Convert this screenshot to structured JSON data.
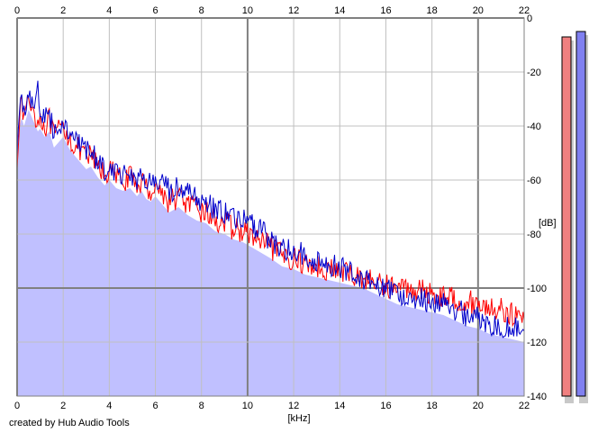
{
  "credit": "created by Hub Audio Tools",
  "colors": {
    "background": "#ffffff",
    "plot_background": "#ffffff",
    "fill": "#c0c0ff",
    "grid_light": "#c0c0c0",
    "grid_dark": "#808080",
    "left_channel": "#ff0000",
    "right_channel": "#0000cc",
    "meter_left": "#f08080",
    "meter_right": "#8080f0",
    "meter_shadow": "#c8c8c8"
  },
  "chart_data": {
    "type": "line",
    "title": "",
    "xlabel": "[kHz]",
    "ylabel": "[dB]",
    "xlim": [
      0,
      22
    ],
    "ylim": [
      -140,
      0
    ],
    "x_ticks": [
      "0",
      "2",
      "4",
      "6",
      "8",
      "10",
      "12",
      "14",
      "16",
      "18",
      "20",
      "22"
    ],
    "y_ticks": [
      "0",
      "-20",
      "-40",
      "-60",
      "-80",
      "-100",
      "-120",
      "-140"
    ],
    "grid": true,
    "legend": "none",
    "x": [
      0,
      0.1,
      0.2,
      0.3,
      0.5,
      0.7,
      0.9,
      1.0,
      1.2,
      1.4,
      1.6,
      1.8,
      2.0,
      2.3,
      2.6,
      3.0,
      3.2,
      3.5,
      3.8,
      4.0,
      4.3,
      4.6,
      4.9,
      5.2,
      5.4,
      5.6,
      5.8,
      6.0,
      6.3,
      6.6,
      7.0,
      7.4,
      7.8,
      8.2,
      8.6,
      9.0,
      9.4,
      9.8,
      10.2,
      10.6,
      11.0,
      11.5,
      12.0,
      12.5,
      13.0,
      13.5,
      14.0,
      14.5,
      15.0,
      15.5,
      16.0,
      16.5,
      17.0,
      17.5,
      18.0,
      18.5,
      19.0,
      19.5,
      20.0,
      20.5,
      21.0,
      21.5,
      22.0
    ],
    "series": [
      {
        "color": "#ff0000",
        "values": [
          -52,
          -36,
          -33,
          -36,
          -30,
          -34,
          -38,
          -37,
          -40,
          -38,
          -44,
          -42,
          -40,
          -45,
          -48,
          -52,
          -51,
          -55,
          -58,
          -56,
          -59,
          -60,
          -59,
          -62,
          -60,
          -63,
          -64,
          -62,
          -65,
          -68,
          -66,
          -69,
          -71,
          -72,
          -75,
          -76,
          -78,
          -79,
          -81,
          -83,
          -85,
          -88,
          -89,
          -91,
          -92,
          -93,
          -94,
          -95,
          -96,
          -98,
          -99,
          -100,
          -100,
          -101,
          -102,
          -103,
          -104,
          -105,
          -106,
          -107,
          -108,
          -110,
          -112
        ]
      },
      {
        "color": "#0000cc",
        "values": [
          -50,
          -34,
          -31,
          -34,
          -28,
          -32,
          -25,
          -35,
          -38,
          -36,
          -42,
          -40,
          -38,
          -43,
          -46,
          -50,
          -49,
          -53,
          -56,
          -54,
          -57,
          -58,
          -57,
          -60,
          -58,
          -61,
          -62,
          -60,
          -62,
          -64,
          -63,
          -65,
          -67,
          -68,
          -71,
          -72,
          -74,
          -75,
          -77,
          -79,
          -82,
          -85,
          -86,
          -88,
          -90,
          -91,
          -92,
          -94,
          -96,
          -98,
          -100,
          -102,
          -103,
          -104,
          -105,
          -106,
          -108,
          -110,
          -111,
          -113,
          -114,
          -115,
          -116
        ]
      }
    ]
  },
  "meters": {
    "min_db": -140,
    "max_db": 0,
    "left_level_db": -7,
    "right_level_db": -5
  }
}
